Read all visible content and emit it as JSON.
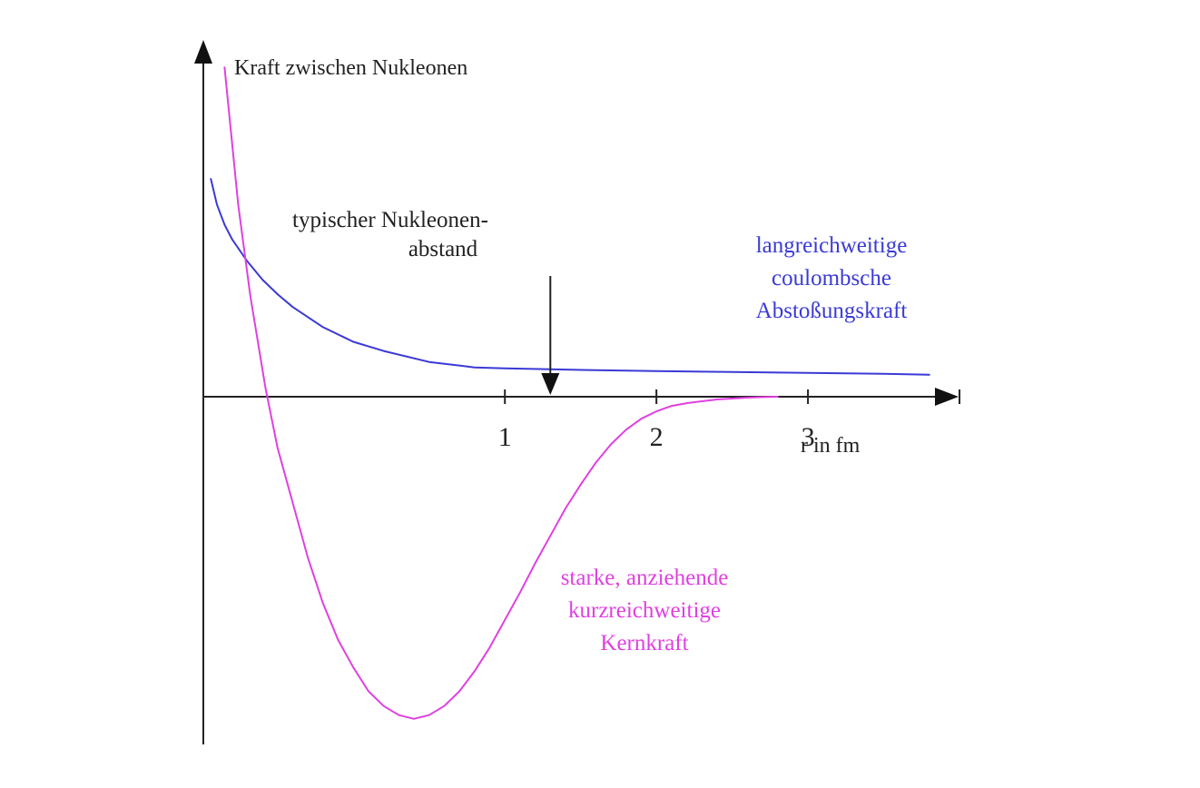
{
  "chart_data": {
    "type": "line",
    "title": "",
    "ylabel": "Kraft zwischen Nukleonen",
    "xlabel": "r in fm",
    "xlim": [
      -0.99,
      3.85
    ],
    "ylim": [
      -1.9,
      1.9
    ],
    "x_ticks": [
      1,
      2,
      3,
      4
    ],
    "x_tick_labels": [
      "1",
      "2",
      "3",
      ""
    ],
    "grid": false,
    "legend": "none",
    "series": [
      {
        "name": "",
        "color": "#3a3ad6",
        "label_lines": [
          "langreichweitige",
          "coulombsche",
          "Abstoßungskraft"
        ],
        "x": [
          -0.94,
          -0.9,
          -0.85,
          -0.8,
          -0.7,
          -0.6,
          -0.5,
          -0.4,
          -0.2,
          0.0,
          0.2,
          0.5,
          0.8,
          1.0,
          1.3,
          1.6,
          2.0,
          2.5,
          3.0,
          3.5,
          3.8
        ],
        "y": [
          1.19,
          1.05,
          0.94,
          0.86,
          0.74,
          0.64,
          0.56,
          0.49,
          0.38,
          0.3,
          0.25,
          0.19,
          0.16,
          0.155,
          0.15,
          0.145,
          0.14,
          0.135,
          0.13,
          0.125,
          0.12
        ]
      },
      {
        "name": "",
        "color": "#e040e0",
        "label_lines": [
          "starke, anziehende",
          "kurzreichweitige",
          "Kernkraft"
        ],
        "x": [
          -0.85,
          -0.82,
          -0.79,
          -0.76,
          -0.72,
          -0.68,
          -0.63,
          -0.58,
          -0.5,
          -0.4,
          -0.3,
          -0.2,
          -0.1,
          0.0,
          0.1,
          0.2,
          0.3,
          0.4,
          0.5,
          0.6,
          0.7,
          0.8,
          0.9,
          1.0,
          1.1,
          1.2,
          1.3,
          1.4,
          1.5,
          1.6,
          1.7,
          1.8,
          1.9,
          2.0,
          2.1,
          2.2,
          2.3,
          2.4,
          2.5,
          2.6,
          2.7,
          2.8
        ],
        "y": [
          1.8,
          1.55,
          1.3,
          1.05,
          0.8,
          0.55,
          0.3,
          0.05,
          -0.28,
          -0.58,
          -0.88,
          -1.13,
          -1.33,
          -1.48,
          -1.61,
          -1.69,
          -1.74,
          -1.76,
          -1.74,
          -1.69,
          -1.61,
          -1.5,
          -1.37,
          -1.22,
          -1.07,
          -0.91,
          -0.76,
          -0.61,
          -0.48,
          -0.36,
          -0.26,
          -0.18,
          -0.12,
          -0.08,
          -0.05,
          -0.035,
          -0.025,
          -0.015,
          -0.01,
          -0.005,
          -0.002,
          0.0
        ]
      }
    ],
    "annotation": {
      "text_lines": [
        "typischer Nukleonen-",
        "abstand"
      ],
      "x": 1.3,
      "y": 0.0
    }
  }
}
